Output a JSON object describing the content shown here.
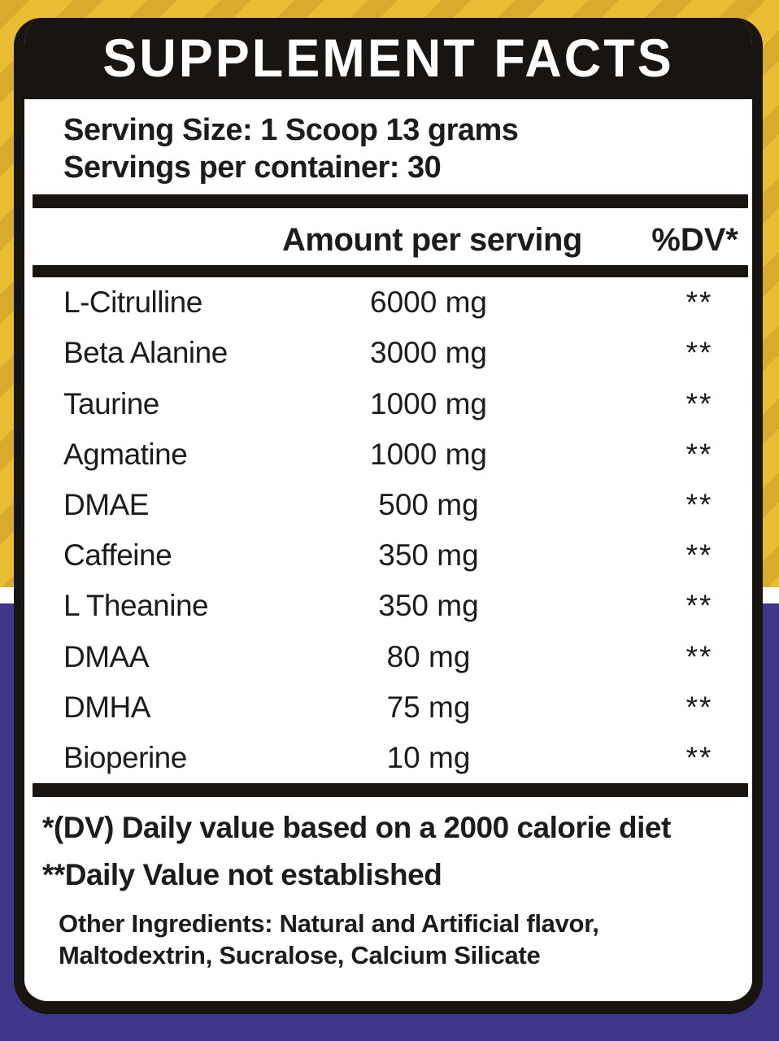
{
  "header": {
    "title": "SUPPLEMENT FACTS"
  },
  "serving": {
    "serving_size": "Serving Size: 1 Scoop 13 grams",
    "servings_per_container": "Servings per container: 30"
  },
  "table": {
    "columns": {
      "amount": "Amount per serving",
      "dv": "%DV*"
    },
    "rows": [
      {
        "name": "L-Citrulline",
        "amount": "6000 mg",
        "dv": "**"
      },
      {
        "name": "Beta Alanine",
        "amount": "3000 mg",
        "dv": "**"
      },
      {
        "name": "Taurine",
        "amount": "1000 mg",
        "dv": "**"
      },
      {
        "name": "Agmatine",
        "amount": "1000 mg",
        "dv": "**"
      },
      {
        "name": "DMAE",
        "amount": "500 mg",
        "dv": "**"
      },
      {
        "name": "Caffeine",
        "amount": "350 mg",
        "dv": "**"
      },
      {
        "name": "L Theanine",
        "amount": "350 mg",
        "dv": "**"
      },
      {
        "name": "DMAA",
        "amount": "80 mg",
        "dv": "**"
      },
      {
        "name": "DMHA",
        "amount": "75 mg",
        "dv": "**"
      },
      {
        "name": "Bioperine",
        "amount": "10 mg",
        "dv": "**"
      }
    ]
  },
  "footnotes": {
    "dv_note": "*(DV) Daily value based on a 2000 calorie diet",
    "not_established_note": "**Daily Value not established",
    "other_ingredients_line1": "Other Ingredients: Natural and Artificial flavor,",
    "other_ingredients_line2": "Maltodextrin, Sucralose, Calcium Silicate"
  },
  "colors": {
    "background_yellow": "#e9bd33",
    "background_yellow_stripe": "#d9aa2c",
    "background_purple": "#3e3689",
    "panel_black": "#171412",
    "panel_white": "#ffffff",
    "text_black": "#1c1c1c"
  }
}
